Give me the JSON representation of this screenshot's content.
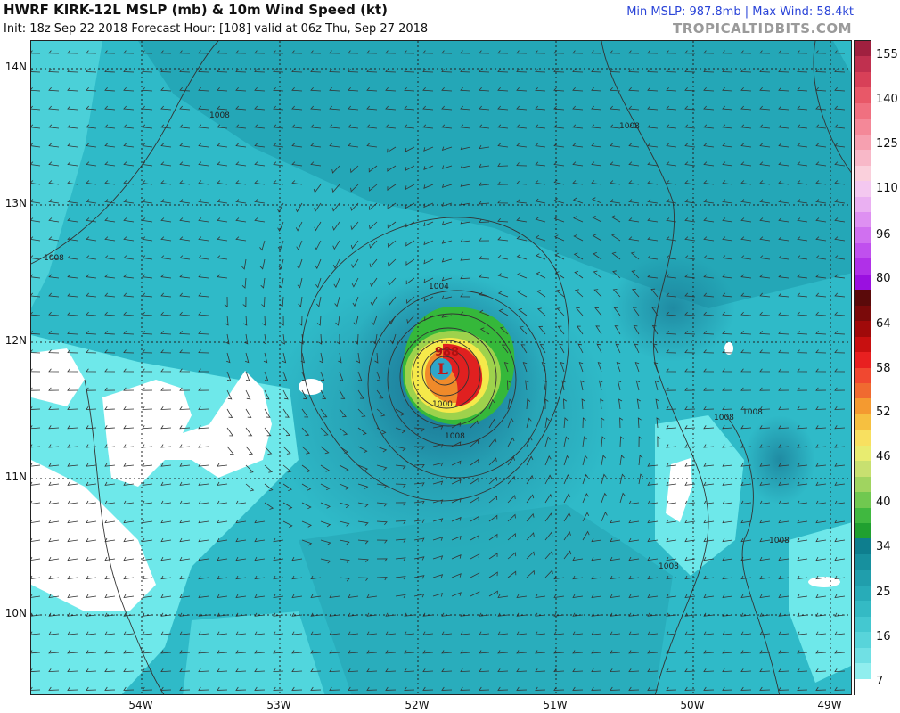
{
  "header": {
    "title": "HWRF KIRK-12L MSLP (mb) & 10m Wind Speed (kt)",
    "subtitle": "Init: 18z Sep 22 2018   Forecast Hour: [108]   valid at 06z Thu, Sep 27 2018",
    "stats": "Min MSLP: 987.8mb | Max Wind: 58.4kt",
    "brand": "TROPICALTIDBITS.COM"
  },
  "map": {
    "lat_labels": [
      "14N",
      "13N",
      "12N",
      "11N",
      "10N"
    ],
    "lon_labels": [
      "54W",
      "53W",
      "52W",
      "51W",
      "50W",
      "49W"
    ],
    "isobar_labels": [
      "1008",
      "1008",
      "1004",
      "1000",
      "1008",
      "1008",
      "1008",
      "1008",
      "1008",
      "1008"
    ],
    "center_pressure": "988",
    "low_marker": "L",
    "colors": {
      "ocean_base": "#2fbac8",
      "calm": "#ffffff",
      "light_cyan": "#6ee8ea",
      "teal": "#26a6b2",
      "dark_teal": "#1b7f99",
      "green": "#35b83a",
      "light_green": "#9ed24c",
      "yellow": "#f5e94a",
      "orange": "#f08a2a",
      "red": "#e02020",
      "isobar": "#333333"
    }
  },
  "colorbar": {
    "ticks": [
      "155",
      "140",
      "125",
      "110",
      "96",
      "80",
      "64",
      "58",
      "52",
      "46",
      "40",
      "34",
      "25",
      "16",
      "7"
    ],
    "segments": [
      "#a0203f",
      "#c0304f",
      "#d84058",
      "#e85868",
      "#f07080",
      "#f48898",
      "#f6a0b0",
      "#f8b8c8",
      "#fad0dc",
      "#f4c8f0",
      "#eab0f2",
      "#de90f2",
      "#d070f0",
      "#c050ee",
      "#b030e8",
      "#9a10e0",
      "#5a0a0a",
      "#7a0a0a",
      "#a00a0a",
      "#c81010",
      "#e82020",
      "#f04830",
      "#f06a30",
      "#f49a30",
      "#f6c040",
      "#f8e060",
      "#e8ec70",
      "#c8e070",
      "#a0d460",
      "#70c850",
      "#40b840",
      "#20a030",
      "#0e7e8e",
      "#17909e",
      "#209eac",
      "#28acb8",
      "#34bac4",
      "#44c8d0",
      "#58d4da",
      "#70e0e4",
      "#90eeee",
      "#ffffff"
    ]
  }
}
